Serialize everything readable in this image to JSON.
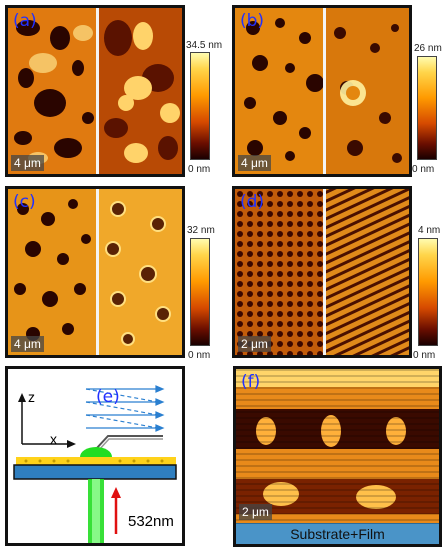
{
  "panels": [
    {
      "label": "(a)",
      "scale_bar": "4 μm",
      "cbar_max": "34.5 nm",
      "cbar_min": "0 nm"
    },
    {
      "label": "(b)",
      "scale_bar": "4 μm",
      "cbar_max": "26 nm",
      "cbar_min": "0 nm"
    },
    {
      "label": "(c)",
      "scale_bar": "4 μm",
      "cbar_max": "32 nm",
      "cbar_min": "0 nm"
    },
    {
      "label": "(d)",
      "scale_bar": "2 μm",
      "cbar_max": "4 nm",
      "cbar_min": "0 nm"
    }
  ],
  "schematic": {
    "label": "(e)",
    "axis_z": "z",
    "axis_x": "x",
    "laser_label": "532nm",
    "colors": {
      "substrate": "#2f7fc0",
      "film": "#ffd21a",
      "laser": "#22dd22",
      "laser_arrow": "#e01010",
      "scan_lines": "#2a7fd0"
    }
  },
  "panel_f": {
    "label": "(f)",
    "scale_bar": "2 μm",
    "footer": "Substrate+Film"
  }
}
